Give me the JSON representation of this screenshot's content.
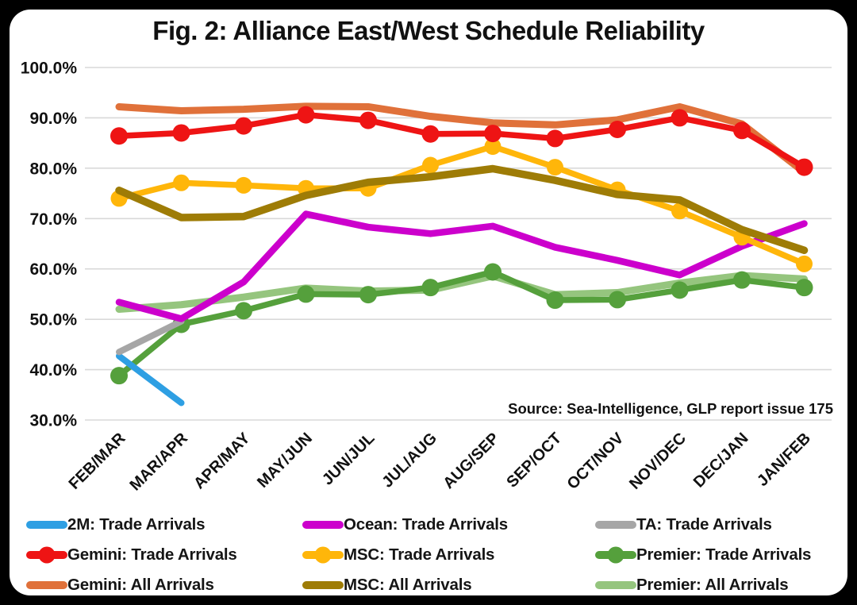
{
  "chart_data": {
    "type": "line",
    "title": "Fig. 2: Alliance East/West Schedule Reliability",
    "source": "Source: Sea-Intelligence, GLP report issue 175",
    "background_color": "#000000",
    "card_color": "#FFFFFF",
    "grid_color": "#D9D9D9",
    "text_color": "#111111",
    "grid": "horizontal",
    "legend_position": "bottom",
    "x_categories": [
      "FEB/MAR",
      "MAR/APR",
      "APR/MAY",
      "MAY/JUN",
      "JUN/JUL",
      "JUL/AUG",
      "AUG/SEP",
      "SEP/OCT",
      "OCT/NOV",
      "NOV/DEC",
      "DEC/JAN",
      "JAN/FEB"
    ],
    "y_axis": {
      "min": 30,
      "max": 100,
      "tick_step": 10,
      "unit": "%",
      "ticks": [
        {
          "value": 100,
          "label": "100.0%"
        },
        {
          "value": 90,
          "label": "90.0%"
        },
        {
          "value": 80,
          "label": "80.0%"
        },
        {
          "value": 70,
          "label": "70.0%"
        },
        {
          "value": 60,
          "label": "60.0%"
        },
        {
          "value": 50,
          "label": "50.0%"
        },
        {
          "value": 40,
          "label": "40.0%"
        },
        {
          "value": 30,
          "label": "30.0%"
        }
      ]
    },
    "series": [
      {
        "name": "2M: Trade Arrivals",
        "slug": "2m-trade-arrivals",
        "color": "#2E9FE3",
        "marker": false,
        "line_width": 8,
        "marker_radius": 0,
        "values": [
          42.7,
          33.4,
          null,
          null,
          null,
          null,
          null,
          null,
          null,
          null,
          null,
          null
        ]
      },
      {
        "name": "Ocean: Trade Arrivals",
        "slug": "ocean-trade-arrivals",
        "color": "#CC00CC",
        "marker": false,
        "line_width": 8.5,
        "marker_radius": 0,
        "values": [
          53.4,
          50.1,
          57.4,
          70.9,
          68.3,
          67.0,
          68.5,
          64.3,
          61.7,
          58.8,
          64.5,
          69.0
        ]
      },
      {
        "name": "TA: Trade Arrivals",
        "slug": "ta-trade-arrivals",
        "color": "#A6A6A6",
        "marker": false,
        "line_width": 8,
        "marker_radius": 0,
        "values": [
          43.5,
          49.6,
          null,
          null,
          null,
          null,
          null,
          null,
          null,
          null,
          null,
          null
        ]
      },
      {
        "name": "Gemini: Trade Arrivals",
        "slug": "gemini-trade-arrivals",
        "color": "#EE1414",
        "marker": true,
        "line_width": 7.5,
        "marker_radius": 11,
        "values": [
          86.4,
          87.0,
          88.4,
          90.6,
          89.5,
          86.8,
          86.9,
          85.9,
          87.7,
          90.0,
          87.5,
          80.2
        ]
      },
      {
        "name": "MSC: Trade Arrivals",
        "slug": "msc-trade-arrivals",
        "color": "#FFB60A",
        "marker": true,
        "line_width": 7.5,
        "marker_radius": 10.5,
        "values": [
          74.0,
          77.1,
          76.6,
          76.0,
          76.0,
          80.6,
          84.3,
          80.2,
          75.7,
          71.5,
          66.3,
          61.0
        ]
      },
      {
        "name": "Premier: Trade Arrivals",
        "slug": "premier-trade-arrivals",
        "color": "#55A03C",
        "marker": true,
        "line_width": 7.5,
        "marker_radius": 11,
        "values": [
          38.8,
          49.0,
          51.7,
          55.0,
          54.9,
          56.3,
          59.4,
          53.8,
          53.9,
          55.8,
          57.8,
          56.3
        ]
      },
      {
        "name": "Gemini: All Arrivals",
        "slug": "gemini-all-arrivals",
        "color": "#E0713A",
        "marker": false,
        "line_width": 9,
        "marker_radius": 0,
        "values": [
          92.2,
          91.4,
          91.7,
          92.3,
          92.2,
          90.3,
          89.0,
          88.6,
          89.6,
          92.2,
          88.8,
          79.2
        ]
      },
      {
        "name": "MSC: All Arrivals",
        "slug": "msc-all-arrivals",
        "color": "#9E7C06",
        "marker": false,
        "line_width": 9.5,
        "marker_radius": 0,
        "values": [
          75.6,
          70.2,
          70.4,
          74.6,
          77.2,
          78.3,
          79.9,
          77.6,
          74.8,
          73.7,
          67.8,
          63.7
        ]
      },
      {
        "name": "Premier: All Arrivals",
        "slug": "premier-all-arrivals",
        "color": "#95C57E",
        "marker": false,
        "line_width": 9,
        "marker_radius": 0,
        "values": [
          52.0,
          52.9,
          54.4,
          56.2,
          55.6,
          55.8,
          58.6,
          54.9,
          55.3,
          57.2,
          58.7,
          58.0
        ]
      }
    ],
    "draw_order": [
      8,
      5,
      0,
      2,
      1,
      6,
      4,
      7,
      3
    ]
  }
}
